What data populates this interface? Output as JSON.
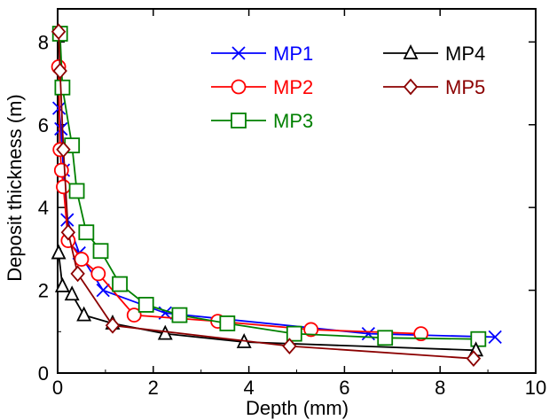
{
  "chart_data": {
    "type": "line",
    "title": "",
    "xlabel": "Depth (mm)",
    "ylabel": "Deposit thickness (m)",
    "xlim": [
      0,
      10
    ],
    "ylim": [
      0,
      8.8
    ],
    "xticks": [
      0,
      2,
      4,
      6,
      8,
      10
    ],
    "yticks": [
      0,
      2,
      4,
      6,
      8
    ],
    "grid": false,
    "legend_placement": "top-right",
    "series": [
      {
        "name": "MP1",
        "color": "#0000ff",
        "marker": "x",
        "x": [
          0.03,
          0.07,
          0.12,
          0.2,
          0.45,
          0.95,
          2.25,
          6.5,
          9.15
        ],
        "y": [
          6.4,
          5.9,
          4.9,
          3.7,
          2.9,
          2.0,
          1.45,
          0.95,
          0.87
        ]
      },
      {
        "name": "MP2",
        "color": "#ff0000",
        "marker": "circle",
        "x": [
          0.02,
          0.05,
          0.08,
          0.12,
          0.22,
          0.5,
          0.85,
          1.6,
          3.35,
          5.3,
          7.6
        ],
        "y": [
          7.4,
          5.4,
          4.9,
          4.5,
          3.2,
          2.75,
          2.4,
          1.4,
          1.25,
          1.05,
          0.95
        ]
      },
      {
        "name": "MP3",
        "color": "#008000",
        "marker": "square",
        "x": [
          0.05,
          0.1,
          0.3,
          0.4,
          0.6,
          0.9,
          1.3,
          1.85,
          2.55,
          3.55,
          4.95,
          6.85,
          8.8
        ],
        "y": [
          8.2,
          6.9,
          5.5,
          4.4,
          3.4,
          2.95,
          2.15,
          1.65,
          1.4,
          1.2,
          0.95,
          0.85,
          0.82
        ]
      },
      {
        "name": "MP4",
        "color": "#000000",
        "marker": "triangle",
        "x": [
          0.02,
          0.1,
          0.3,
          0.55,
          1.15,
          2.25,
          3.9,
          8.75
        ],
        "y": [
          2.9,
          2.1,
          1.9,
          1.4,
          1.2,
          0.95,
          0.75,
          0.55
        ]
      },
      {
        "name": "MP5",
        "color": "#8b0000",
        "marker": "diamond",
        "x": [
          0.02,
          0.05,
          0.12,
          0.22,
          0.42,
          1.15,
          4.85,
          8.7
        ],
        "y": [
          8.25,
          7.3,
          5.4,
          3.4,
          2.4,
          1.15,
          0.65,
          0.35
        ]
      }
    ]
  }
}
